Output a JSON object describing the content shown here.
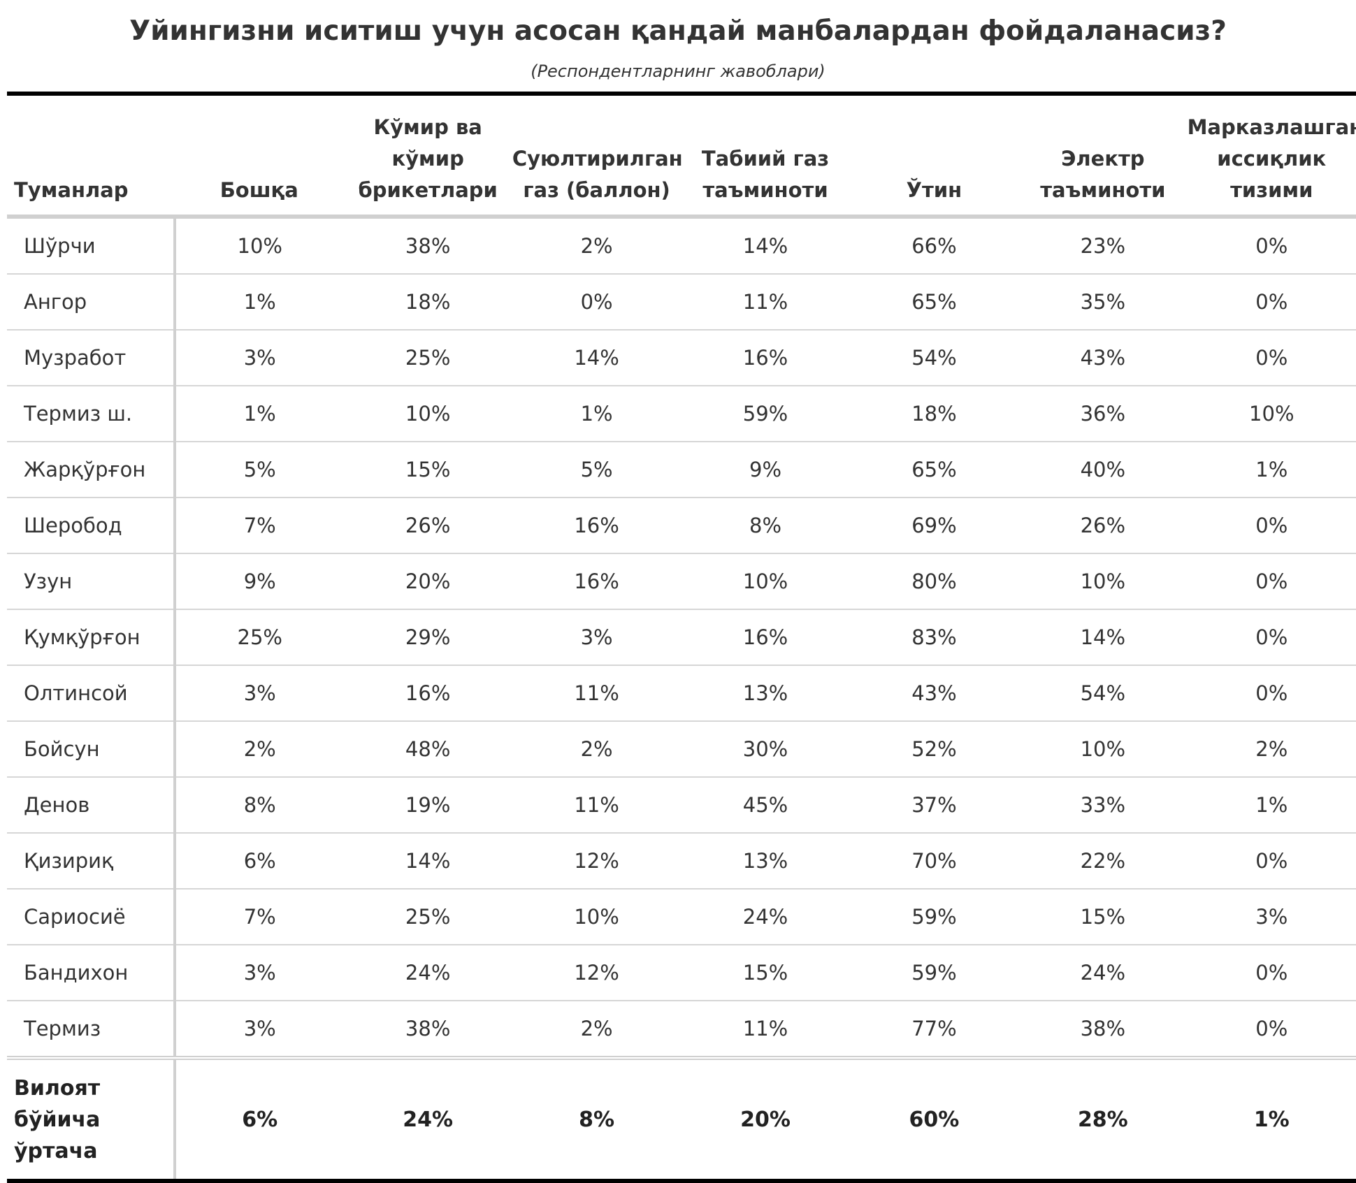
{
  "chart_data": {
    "type": "table",
    "title": "Уйингизни иситиш учун асосан қандай манбалардан фойдаланасиз?",
    "subtitle": "(Респондентларнинг жавоблари)",
    "row_header": "Туманлар",
    "columns": [
      [
        "Бошқа"
      ],
      [
        "Кўмир ва",
        "кўмир",
        "брикетлари"
      ],
      [
        "Суюлтирилган",
        "газ (баллон)"
      ],
      [
        "Табиий газ",
        "таъминоти"
      ],
      [
        "Ўтин"
      ],
      [
        "Электр",
        "таъминоти"
      ],
      [
        "Марказлашган",
        "иссиқлик",
        "тизими"
      ]
    ],
    "rows": [
      {
        "name": "Шўрчи",
        "values": [
          "10%",
          "38%",
          "2%",
          "14%",
          "66%",
          "23%",
          "0%"
        ]
      },
      {
        "name": "Ангор",
        "values": [
          "1%",
          "18%",
          "0%",
          "11%",
          "65%",
          "35%",
          "0%"
        ]
      },
      {
        "name": "Музработ",
        "values": [
          "3%",
          "25%",
          "14%",
          "16%",
          "54%",
          "43%",
          "0%"
        ]
      },
      {
        "name": "Термиз ш.",
        "values": [
          "1%",
          "10%",
          "1%",
          "59%",
          "18%",
          "36%",
          "10%"
        ]
      },
      {
        "name": "Жарқўрғон",
        "values": [
          "5%",
          "15%",
          "5%",
          "9%",
          "65%",
          "40%",
          "1%"
        ]
      },
      {
        "name": "Шеробод",
        "values": [
          "7%",
          "26%",
          "16%",
          "8%",
          "69%",
          "26%",
          "0%"
        ]
      },
      {
        "name": "Узун",
        "values": [
          "9%",
          "20%",
          "16%",
          "10%",
          "80%",
          "10%",
          "0%"
        ]
      },
      {
        "name": "Қумқўрғон",
        "values": [
          "25%",
          "29%",
          "3%",
          "16%",
          "83%",
          "14%",
          "0%"
        ]
      },
      {
        "name": "Олтинсой",
        "values": [
          "3%",
          "16%",
          "11%",
          "13%",
          "43%",
          "54%",
          "0%"
        ]
      },
      {
        "name": "Бойсун",
        "values": [
          "2%",
          "48%",
          "2%",
          "30%",
          "52%",
          "10%",
          "2%"
        ]
      },
      {
        "name": "Денов",
        "values": [
          "8%",
          "19%",
          "11%",
          "45%",
          "37%",
          "33%",
          "1%"
        ]
      },
      {
        "name": "Қизириқ",
        "values": [
          "6%",
          "14%",
          "12%",
          "13%",
          "70%",
          "22%",
          "0%"
        ]
      },
      {
        "name": "Сариосиё",
        "values": [
          "7%",
          "25%",
          "10%",
          "24%",
          "59%",
          "15%",
          "3%"
        ]
      },
      {
        "name": "Бандихон",
        "values": [
          "3%",
          "24%",
          "12%",
          "15%",
          "59%",
          "24%",
          "0%"
        ]
      },
      {
        "name": "Термиз",
        "values": [
          "3%",
          "38%",
          "2%",
          "11%",
          "77%",
          "38%",
          "0%"
        ]
      }
    ],
    "total": {
      "name": [
        "Вилоят",
        "бўйича",
        "ўртача"
      ],
      "values": [
        "6%",
        "24%",
        "8%",
        "20%",
        "60%",
        "28%",
        "1%"
      ]
    }
  }
}
